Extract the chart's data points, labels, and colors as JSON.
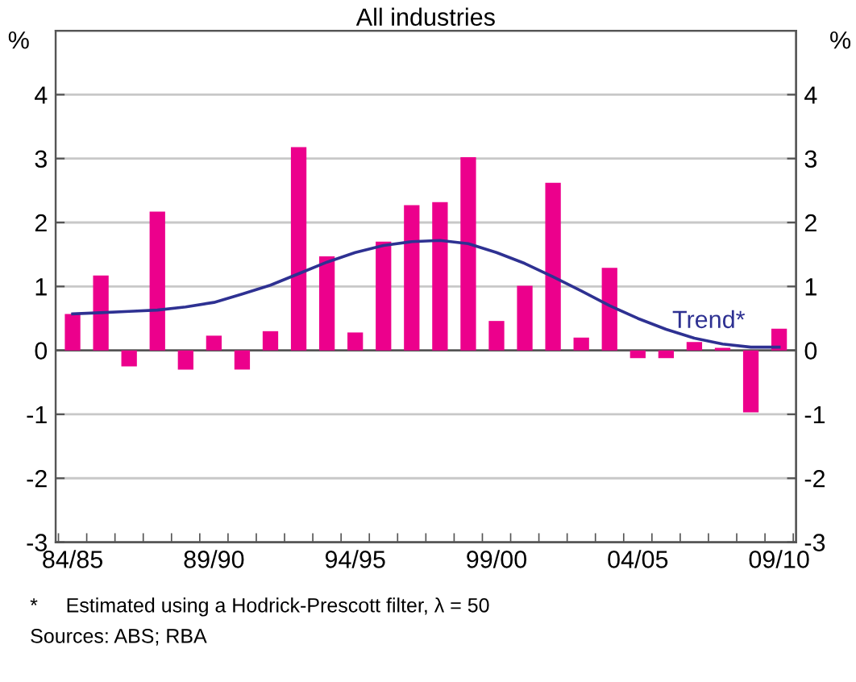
{
  "chart_data": {
    "type": "bar",
    "title": "All industries",
    "ylabel": "%",
    "y2label": "%",
    "categories": [
      "84/85",
      null,
      null,
      null,
      null,
      "89/90",
      null,
      null,
      null,
      null,
      "94/95",
      null,
      null,
      null,
      null,
      "99/00",
      null,
      null,
      null,
      null,
      "04/05",
      null,
      null,
      null,
      null,
      "09/10"
    ],
    "series": [
      {
        "color": "#ec008c",
        "values": [
          0.57,
          1.17,
          -0.25,
          2.17,
          -0.3,
          0.23,
          -0.3,
          0.3,
          3.18,
          1.47,
          0.28,
          1.7,
          2.27,
          2.32,
          3.02,
          0.46,
          1.01,
          2.62,
          0.2,
          1.29,
          -0.12,
          -0.12,
          0.13,
          0.04,
          -0.97,
          0.34
        ]
      },
      {
        "type": "line",
        "name": "Trend*",
        "color": "#2e3192",
        "values": [
          0.57,
          0.59,
          0.61,
          0.63,
          0.68,
          0.75,
          0.88,
          1.02,
          1.2,
          1.38,
          1.53,
          1.64,
          1.7,
          1.72,
          1.67,
          1.53,
          1.36,
          1.15,
          0.93,
          0.7,
          0.5,
          0.33,
          0.19,
          0.1,
          0.05,
          0.05
        ]
      }
    ],
    "ylim": [
      -3,
      5
    ],
    "yticks": [
      -3,
      -2,
      -1,
      0,
      1,
      2,
      3,
      4
    ],
    "y2lim": [
      -3,
      5
    ],
    "y2ticks": [
      -3,
      -2,
      -1,
      0,
      1,
      2,
      3,
      4
    ],
    "grid": "y",
    "legend": false,
    "annotations": [
      "*     Estimated using a Hodrick-Prescott filter, λ = 50",
      "Sources: ABS; RBA"
    ]
  }
}
